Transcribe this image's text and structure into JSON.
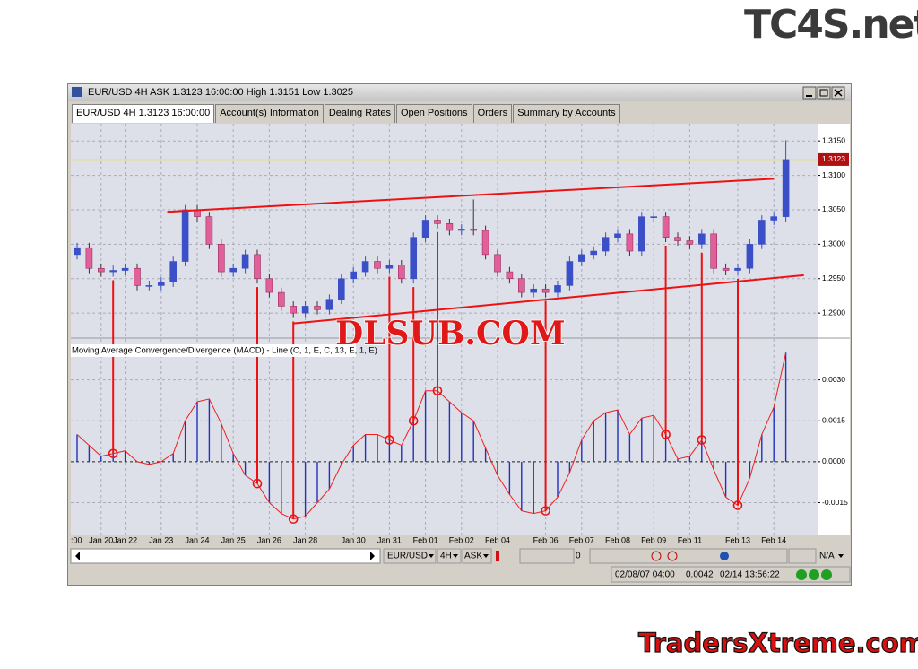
{
  "window": {
    "title": "EUR/USD 4H ASK 1.3123 16:00:00 High 1.3151 Low 1.3025"
  },
  "tabs": [
    "EUR/USD 4H 1.3123 16:00:00",
    "Account(s) Information",
    "Dealing Rates",
    "Open Positions",
    "Orders",
    "Summary by Accounts"
  ],
  "chart_data": {
    "type": "candlestick",
    "categories": [
      ":00",
      null,
      "Jan 20",
      null,
      "Jan 22",
      null,
      null,
      "Jan 23",
      null,
      null,
      "Jan 24",
      null,
      null,
      "Jan 25",
      null,
      null,
      "Jan 26",
      null,
      null,
      "Jan 28",
      null,
      null,
      null,
      "Jan 30",
      null,
      null,
      "Jan 31",
      null,
      null,
      "Feb 01",
      null,
      null,
      "Feb 02",
      null,
      null,
      "Feb 04",
      null,
      null,
      null,
      "Feb 06",
      null,
      null,
      "Feb 07",
      null,
      null,
      "Feb 08",
      null,
      null,
      "Feb 09",
      null,
      null,
      "Feb 11",
      null,
      null,
      null,
      "Feb 13",
      null,
      null,
      "Feb 14",
      null
    ],
    "candles": [
      [
        1.2985,
        1.3002,
        1.2978,
        1.2995
      ],
      [
        1.2995,
        1.3002,
        1.2958,
        1.2965
      ],
      [
        1.2965,
        1.2972,
        1.2953,
        1.296
      ],
      [
        1.296,
        1.2969,
        1.2953,
        1.2962
      ],
      [
        1.2962,
        1.2972,
        1.2955,
        1.2965
      ],
      [
        1.2965,
        1.2972,
        1.2933,
        1.294
      ],
      [
        1.294,
        1.2947,
        1.2933,
        1.294
      ],
      [
        1.294,
        1.2952,
        1.2933,
        1.2945
      ],
      [
        1.2945,
        1.2982,
        1.2938,
        1.2975
      ],
      [
        1.2975,
        1.3057,
        1.2968,
        1.305
      ],
      [
        1.305,
        1.3057,
        1.3033,
        1.304
      ],
      [
        1.304,
        1.3047,
        1.2993,
        1.3
      ],
      [
        1.3,
        1.3007,
        1.2953,
        1.296
      ],
      [
        1.296,
        1.2972,
        1.2953,
        1.2965
      ],
      [
        1.2965,
        1.2992,
        1.2958,
        1.2985
      ],
      [
        1.2985,
        1.2992,
        1.2943,
        1.295
      ],
      [
        1.295,
        1.2957,
        1.2923,
        1.293
      ],
      [
        1.293,
        1.2937,
        1.2903,
        1.291
      ],
      [
        1.291,
        1.2917,
        1.2893,
        1.29
      ],
      [
        1.29,
        1.2917,
        1.2893,
        1.291
      ],
      [
        1.291,
        1.2917,
        1.2898,
        1.2905
      ],
      [
        1.2905,
        1.2927,
        1.2898,
        1.292
      ],
      [
        1.292,
        1.2957,
        1.2913,
        1.295
      ],
      [
        1.295,
        1.2967,
        1.2943,
        1.296
      ],
      [
        1.296,
        1.2982,
        1.2953,
        1.2975
      ],
      [
        1.2975,
        1.2982,
        1.2958,
        1.2965
      ],
      [
        1.2965,
        1.2977,
        1.2958,
        1.297
      ],
      [
        1.297,
        1.2977,
        1.2943,
        1.295
      ],
      [
        1.295,
        1.3017,
        1.2943,
        1.301
      ],
      [
        1.301,
        1.3042,
        1.3003,
        1.3035
      ],
      [
        1.3035,
        1.3042,
        1.3023,
        1.303
      ],
      [
        1.303,
        1.3037,
        1.3013,
        1.302
      ],
      [
        1.302,
        1.3029,
        1.3013,
        1.3022
      ],
      [
        1.3022,
        1.3065,
        1.3013,
        1.302
      ],
      [
        1.302,
        1.3027,
        1.2978,
        1.2985
      ],
      [
        1.2985,
        1.2992,
        1.2953,
        1.296
      ],
      [
        1.296,
        1.2967,
        1.2943,
        1.295
      ],
      [
        1.295,
        1.2957,
        1.2923,
        1.293
      ],
      [
        1.293,
        1.2942,
        1.2923,
        1.2935
      ],
      [
        1.2935,
        1.2942,
        1.2923,
        1.293
      ],
      [
        1.293,
        1.2947,
        1.2923,
        1.294
      ],
      [
        1.294,
        1.2982,
        1.2933,
        1.2975
      ],
      [
        1.2975,
        1.2992,
        1.2968,
        1.2985
      ],
      [
        1.2985,
        1.2997,
        1.2978,
        1.299
      ],
      [
        1.299,
        1.3017,
        1.2983,
        1.301
      ],
      [
        1.301,
        1.3022,
        1.3003,
        1.3015
      ],
      [
        1.3015,
        1.3022,
        1.2983,
        1.299
      ],
      [
        1.299,
        1.3047,
        1.2983,
        1.304
      ],
      [
        1.304,
        1.3047,
        1.3033,
        1.304
      ],
      [
        1.304,
        1.3047,
        1.3003,
        1.301
      ],
      [
        1.301,
        1.3017,
        1.2998,
        1.3005
      ],
      [
        1.3005,
        1.3012,
        1.2993,
        1.3
      ],
      [
        1.3,
        1.3022,
        1.2993,
        1.3015
      ],
      [
        1.3015,
        1.3022,
        1.2958,
        1.2965
      ],
      [
        1.2965,
        1.2972,
        1.2955,
        1.2962
      ],
      [
        1.2962,
        1.2972,
        1.2955,
        1.2965
      ],
      [
        1.2965,
        1.3007,
        1.2958,
        1.3
      ],
      [
        1.3,
        1.3042,
        1.2993,
        1.3035
      ],
      [
        1.3035,
        1.3047,
        1.3028,
        1.304
      ],
      [
        1.304,
        1.3151,
        1.3033,
        1.3123
      ]
    ],
    "up_color": "#3a4fc8",
    "down_color": "#e2609a",
    "ylim": [
      1.2865,
      1.3175
    ],
    "yticks": [
      {
        "value": 1.29,
        "label": "1.2900"
      },
      {
        "value": 1.295,
        "label": "1.2950"
      },
      {
        "value": 1.3,
        "label": "1.3000"
      },
      {
        "value": 1.305,
        "label": "1.3050"
      },
      {
        "value": 1.31,
        "label": "1.3100"
      },
      {
        "value": 1.315,
        "label": "1.3150"
      }
    ],
    "grid": true,
    "current_price": {
      "value": 1.3123,
      "label": "1.3123"
    },
    "trendlines": [
      {
        "from": [
          7.5,
          1.3047
        ],
        "to": [
          58,
          1.3095
        ]
      },
      {
        "from": [
          18,
          1.2885
        ],
        "to": [
          60.5,
          1.2955
        ]
      }
    ],
    "annotation_color": "#ee1111",
    "markers": [
      3,
      15,
      18,
      26,
      28,
      30,
      39,
      49,
      52,
      55
    ],
    "indicator": {
      "title": "Moving Average Convergence/Divergence (MACD) - Line (C, 1, E, C, 13, E, 1, E)",
      "values": [
        0.001,
        0.0006,
        0.0002,
        0.0003,
        0.0004,
        0,
        -0.0001,
        0,
        0.0003,
        0.0015,
        0.0022,
        0.0023,
        0.0014,
        0.0003,
        -0.0005,
        -0.0008,
        -0.0015,
        -0.0019,
        -0.0021,
        -0.002,
        -0.0015,
        -0.001,
        -0.0001,
        0.0006,
        0.001,
        0.001,
        0.0008,
        0.0006,
        0.0015,
        0.0026,
        0.0026,
        0.0022,
        0.0018,
        0.0015,
        0.0005,
        -0.0005,
        -0.0012,
        -0.0018,
        -0.0019,
        -0.0018,
        -0.0013,
        -0.0004,
        0.0008,
        0.0015,
        0.0018,
        0.0019,
        0.001,
        0.0016,
        0.0017,
        0.001,
        0.0001,
        0.0002,
        0.0008,
        -0.0003,
        -0.0013,
        -0.0016,
        -0.0006,
        0.001,
        0.002,
        0.004
      ],
      "color": "#2030c0",
      "line_color": "#ee2020",
      "ylim": [
        -0.0027,
        0.0045
      ],
      "yticks": [
        {
          "value": -0.0015,
          "label": "-0.0015"
        },
        {
          "value": 0,
          "label": "0.0000"
        },
        {
          "value": 0.0015,
          "label": "0.0015"
        },
        {
          "value": 0.003,
          "label": "0.0030"
        }
      ]
    }
  },
  "toolbar": {
    "symbol": "EUR/USD",
    "period": "4H",
    "price": "ASK",
    "zoom": "0",
    "mode": "N/A"
  },
  "status": {
    "time": "02/08/07 04:00",
    "value": "0.0042",
    "clock": "02/14 13:56:22"
  },
  "watermarks": {
    "top": "TC4S.net",
    "middle": "DLSUB.COM",
    "bottom": "TradersXtreme.com"
  }
}
